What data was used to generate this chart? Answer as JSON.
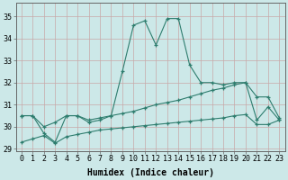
{
  "x": [
    0,
    1,
    2,
    3,
    4,
    5,
    6,
    7,
    8,
    9,
    10,
    11,
    12,
    13,
    14,
    15,
    16,
    17,
    18,
    19,
    20,
    21,
    22,
    23
  ],
  "line1": [
    30.5,
    30.5,
    29.7,
    29.3,
    30.5,
    30.5,
    30.2,
    30.3,
    30.5,
    32.5,
    34.6,
    34.8,
    33.7,
    34.9,
    34.9,
    32.8,
    32.0,
    32.0,
    31.9,
    32.0,
    32.0,
    30.3,
    30.9,
    30.3
  ],
  "line2": [
    30.5,
    30.5,
    30.0,
    30.2,
    30.5,
    30.5,
    30.3,
    30.4,
    30.5,
    30.6,
    30.7,
    30.85,
    31.0,
    31.1,
    31.2,
    31.35,
    31.5,
    31.65,
    31.75,
    31.9,
    32.0,
    31.35,
    31.35,
    30.4
  ],
  "line3": [
    29.3,
    29.45,
    29.6,
    29.25,
    29.55,
    29.65,
    29.75,
    29.85,
    29.9,
    29.95,
    30.0,
    30.05,
    30.1,
    30.15,
    30.2,
    30.25,
    30.3,
    30.35,
    30.4,
    30.5,
    30.55,
    30.1,
    30.1,
    30.3
  ],
  "line_color": "#2e7d6e",
  "bg_color": "#cce8e8",
  "grid_color": "#c8a8a8",
  "ylim": [
    28.9,
    35.6
  ],
  "xlim": [
    -0.5,
    23.5
  ],
  "xlabel": "Humidex (Indice chaleur)",
  "xticks": [
    0,
    1,
    2,
    3,
    4,
    5,
    6,
    7,
    8,
    9,
    10,
    11,
    12,
    13,
    14,
    15,
    16,
    17,
    18,
    19,
    20,
    21,
    22,
    23
  ],
  "yticks": [
    29,
    30,
    31,
    32,
    33,
    34,
    35
  ],
  "xlabel_fontsize": 7.0,
  "tick_fontsize": 6.0,
  "marker": "+"
}
